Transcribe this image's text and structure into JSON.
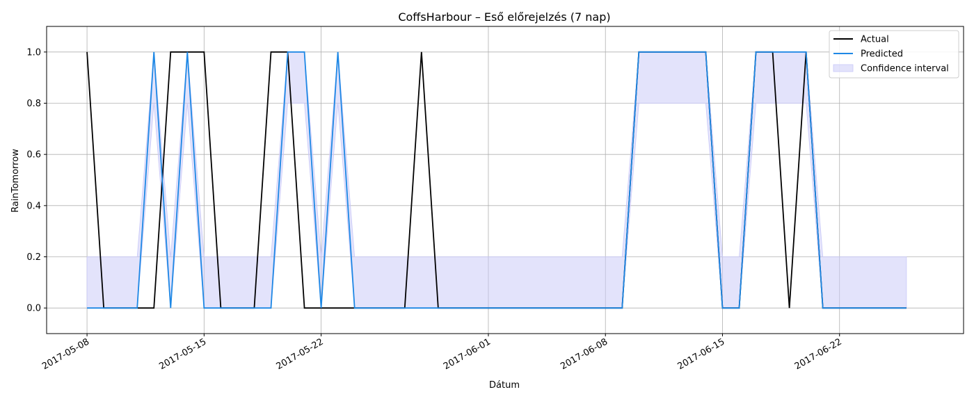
{
  "chart_data": {
    "type": "line",
    "title": "CoffsHarbour – Eső előrejelzés (7 nap)",
    "xlabel": "Dátum",
    "ylabel": "RainTomorrow",
    "x_start": "2017-05-08",
    "x_end": "2017-06-26",
    "xlim": [
      "2017-05-05T14:00",
      "2017-06-29T10:00"
    ],
    "ylim": [
      -0.1,
      1.1
    ],
    "yticks": [
      0.0,
      0.2,
      0.4,
      0.6,
      0.8,
      1.0
    ],
    "ytick_labels": [
      "0.0",
      "0.2",
      "0.4",
      "0.6",
      "0.8",
      "1.0"
    ],
    "xticks": [
      "2017-05-08",
      "2017-05-15",
      "2017-05-22",
      "2017-06-01",
      "2017-06-08",
      "2017-06-15",
      "2017-06-22"
    ],
    "grid": true,
    "legend_position": "top-right",
    "series": [
      {
        "name": "Actual",
        "color": "#000000",
        "values": [
          1,
          0,
          0,
          0,
          0,
          1,
          1,
          1,
          0,
          0,
          0,
          1,
          1,
          0,
          0,
          0,
          0,
          0,
          0,
          0,
          1,
          0,
          0,
          0,
          0,
          0,
          0,
          0,
          0,
          0,
          0,
          0,
          0,
          1,
          1,
          1,
          1,
          1,
          0,
          0,
          1,
          1,
          0,
          1,
          0,
          0,
          0,
          0,
          0,
          0
        ]
      },
      {
        "name": "Predicted",
        "color": "#1e88e5",
        "values": [
          0,
          0,
          0,
          0,
          1,
          0,
          1,
          0,
          0,
          0,
          0,
          0,
          1,
          1,
          0,
          1,
          0,
          0,
          0,
          0,
          0,
          0,
          0,
          0,
          0,
          0,
          0,
          0,
          0,
          0,
          0,
          0,
          0,
          1,
          1,
          1,
          1,
          1,
          0,
          0,
          1,
          1,
          1,
          1,
          0,
          0,
          0,
          0,
          0,
          0
        ]
      },
      {
        "name": "Confidence interval",
        "color": "#c8c8f8",
        "lower": [
          0,
          0,
          0,
          0,
          0.8,
          0,
          0.8,
          0,
          0,
          0,
          0,
          0,
          0.8,
          0.8,
          0,
          0.8,
          0,
          0,
          0,
          0,
          0,
          0,
          0,
          0,
          0,
          0,
          0,
          0,
          0,
          0,
          0,
          0,
          0,
          0.8,
          0.8,
          0.8,
          0.8,
          0.8,
          0,
          0,
          0.8,
          0.8,
          0.8,
          0.8,
          0,
          0,
          0,
          0,
          0,
          0
        ],
        "upper": [
          0.2,
          0.2,
          0.2,
          0.2,
          1,
          0.2,
          1,
          0.2,
          0.2,
          0.2,
          0.2,
          0.2,
          1,
          1,
          0.2,
          1,
          0.2,
          0.2,
          0.2,
          0.2,
          0.2,
          0.2,
          0.2,
          0.2,
          0.2,
          0.2,
          0.2,
          0.2,
          0.2,
          0.2,
          0.2,
          0.2,
          0.2,
          1,
          1,
          1,
          1,
          1,
          0.2,
          0.2,
          1,
          1,
          1,
          1,
          0.2,
          0.2,
          0.2,
          0.2,
          0.2,
          0.2
        ]
      }
    ]
  }
}
